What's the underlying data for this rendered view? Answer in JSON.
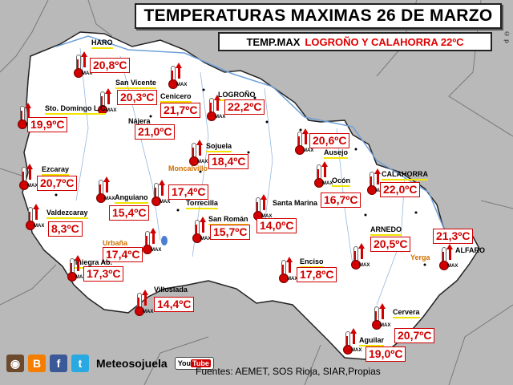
{
  "title": "TEMPERATURAS MAXIMAS 26 DE MARZO",
  "subtitle": {
    "prefix": "TEMP.MAX",
    "highlight": "LOGROÑO Y CALAHORRA 22ºC"
  },
  "copyright": "© p",
  "thermometer_label": "MAX",
  "colors": {
    "region_fill": "#ffffff",
    "outside_fill": "#b9b9b9",
    "temp_text": "#d00000",
    "label_underline": "#f1e400",
    "river": "#6fa0d8"
  },
  "stations": [
    {
      "name": "HARO",
      "temp": "20,8ºC"
    },
    {
      "name": "San Vicente",
      "temp": "20,3ºC"
    },
    {
      "name": "Cenicero",
      "temp": "21,7ºC"
    },
    {
      "name": "LOGROÑO",
      "temp": "22,2ºC"
    },
    {
      "name": "Sto. Domingo L.C",
      "temp": "19,9ºC"
    },
    {
      "name": "Nájera",
      "temp": "21,0ºC"
    },
    {
      "name": "Sojuela",
      "temp": "18,4ºC"
    },
    {
      "name": "Moncalvillo",
      "temp": ""
    },
    {
      "name": "Ausejo",
      "temp": "20,6ºC"
    },
    {
      "name": "Ezcaray",
      "temp": "20,7ºC"
    },
    {
      "name": "Ocón",
      "temp": "16,7ºC"
    },
    {
      "name": "CALAHORRA",
      "temp": "22,0ºC"
    },
    {
      "name": "Anguiano",
      "temp": "15,4ºC"
    },
    {
      "name": "Torrecilla",
      "temp": "17,4ºC"
    },
    {
      "name": "Valdezcaray",
      "temp": "8,3ºC"
    },
    {
      "name": "Santa Marina",
      "temp": "14,0ºC"
    },
    {
      "name": "San Román",
      "temp": "15,7ºC"
    },
    {
      "name": "ARNEDO",
      "temp": "20,5ºC"
    },
    {
      "name": "ALFARO",
      "temp": "21,3ºC"
    },
    {
      "name": "Yerga",
      "temp": ""
    },
    {
      "name": "Urbaña",
      "temp": "17,4ºC"
    },
    {
      "name": "Viniegra Ab.",
      "temp": "17,3ºC"
    },
    {
      "name": "Enciso",
      "temp": "17,8ºC"
    },
    {
      "name": "Villoslada",
      "temp": "14,4ºC"
    },
    {
      "name": "Cervera",
      "temp": "20,7ºC"
    },
    {
      "name": "Aguilar",
      "temp": "19,0ºC"
    }
  ],
  "footer": {
    "brand": "Meteosojuela",
    "youtube_you": "You",
    "youtube_tube": "Tube",
    "sources": "Fuentes: AEMET, SOS Rioja, SIAR,Propias",
    "icons": [
      "instagram-icon",
      "blogger-icon",
      "facebook-icon",
      "twitter-icon",
      "youtube-icon"
    ]
  }
}
